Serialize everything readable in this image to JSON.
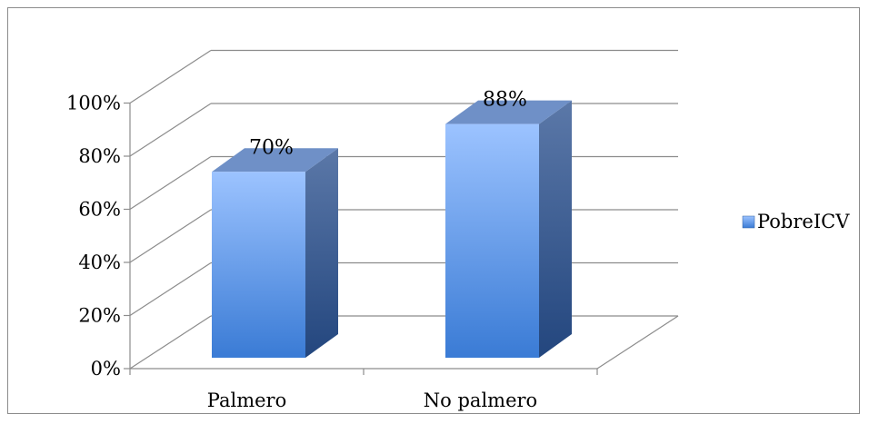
{
  "chart_data": {
    "type": "bar",
    "categories": [
      "Palmero",
      "No palmero"
    ],
    "series": [
      {
        "name": "PobreICV",
        "values": [
          70,
          88
        ],
        "data_labels": [
          "70%",
          "88%"
        ]
      }
    ],
    "y_ticks": [
      "0%",
      "20%",
      "40%",
      "60%",
      "80%",
      "100%"
    ],
    "ylim": [
      0,
      100
    ],
    "style": "3d-column",
    "legend_position": "right",
    "grid": true,
    "colors": {
      "bar_front_top": "#9cc3ff",
      "bar_front_bottom": "#3a7bd5",
      "bar_top": "#6f90c7",
      "bar_side_top": "#5b78a8",
      "bar_side_bottom": "#23467e",
      "grid": "#8c8c8c"
    }
  }
}
